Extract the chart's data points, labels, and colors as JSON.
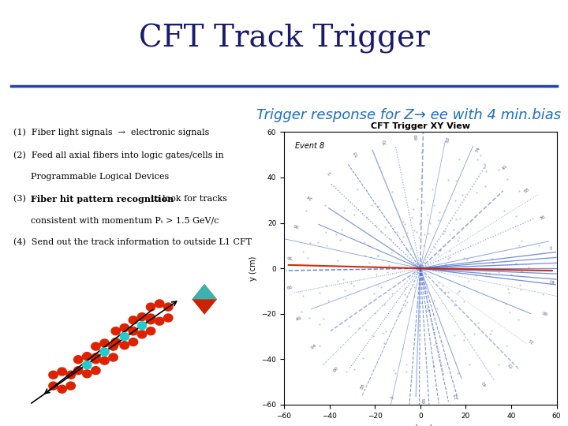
{
  "title": "CFT Track Trigger",
  "title_color": "#1a1a6e",
  "title_fontsize": 28,
  "subtitle": "Trigger response for Z→ ee with 4 min.bias",
  "subtitle_color": "#1a6ec8",
  "subtitle_fontsize": 13,
  "divider_color": "#2244aa",
  "bg_color": "#ffffff",
  "box_color": "#55cccc",
  "plot_title": "CFT Trigger XY View",
  "plot_xlabel": "x (cm)",
  "plot_ylabel": "y (cm)",
  "plot_xlim": [
    -60,
    60
  ],
  "plot_ylim": [
    -60,
    60
  ],
  "plot_xticks": [
    -60,
    -40,
    -20,
    0,
    20,
    40,
    60
  ],
  "plot_yticks": [
    -60,
    -40,
    -20,
    0,
    20,
    40,
    60
  ],
  "event_label": "Event 8",
  "blue_track_color": "#4466cc",
  "red_track_color": "#cc2200",
  "scatter_dot_color": "#8899bb"
}
